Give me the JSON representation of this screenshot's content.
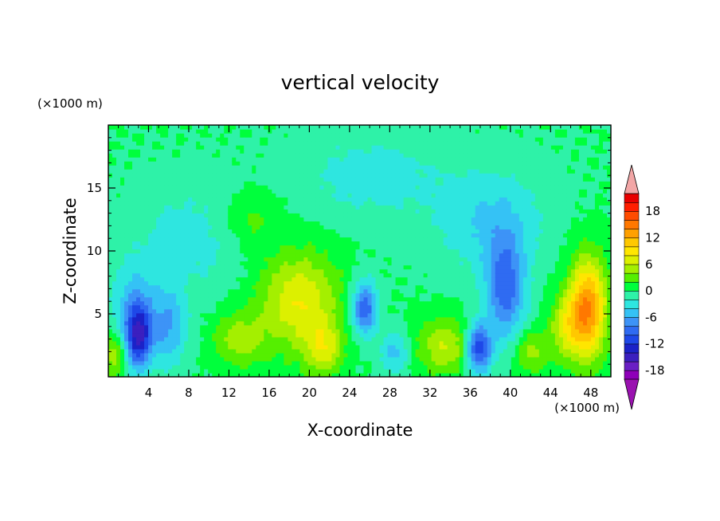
{
  "chart_data": {
    "type": "heatmap",
    "title": "vertical velocity",
    "xlabel": "X-coordinate",
    "ylabel": "Z-coordinate",
    "x_unit": "(×1000 m)",
    "y_unit": "(×1000 m)",
    "xlim": [
      0,
      50
    ],
    "ylim": [
      0,
      20
    ],
    "x_ticks": [
      "4",
      "8",
      "12",
      "16",
      "20",
      "24",
      "28",
      "32",
      "36",
      "40",
      "44",
      "48"
    ],
    "y_ticks": [
      "5",
      "10",
      "15"
    ],
    "colorbar": {
      "levels": [
        -20,
        -18,
        -16,
        -14,
        -12,
        -10,
        -8,
        -6,
        -4,
        -2,
        0,
        2,
        4,
        6,
        8,
        10,
        12,
        14,
        16,
        18,
        20
      ],
      "tick_labels": [
        "18",
        "12",
        "6",
        "0",
        "-6",
        "-12",
        "-18"
      ],
      "colors": [
        "#8e00b8",
        "#6a1fc4",
        "#3b1fbf",
        "#1b22c8",
        "#1e48e8",
        "#2f6bf2",
        "#3d93f7",
        "#35c2f5",
        "#2ee6e0",
        "#2ef2a8",
        "#00ff3c",
        "#55ef00",
        "#a4ef00",
        "#dcf000",
        "#ffe600",
        "#ffc800",
        "#ffa000",
        "#ff7800",
        "#ff4c00",
        "#ff1e00",
        "#e80000"
      ],
      "lower_arrow_color": "#9a12b0",
      "upper_arrow_color": "#f2a6a6"
    },
    "features": [
      {
        "x": 3.0,
        "z": 3.2,
        "value": -12,
        "sx": 0.9,
        "sz": 1.8
      },
      {
        "x": 2.5,
        "z": 5.5,
        "value": -5,
        "sx": 1.5,
        "sz": 2.5
      },
      {
        "x": 6.0,
        "z": 4.0,
        "value": -6,
        "sx": 1.3,
        "sz": 2.2
      },
      {
        "x": 0.6,
        "z": 1.8,
        "value": 6,
        "sx": 0.8,
        "sz": 1.2
      },
      {
        "x": 19.0,
        "z": 6.0,
        "value": 8,
        "sx": 2.8,
        "sz": 2.8
      },
      {
        "x": 21.5,
        "z": 2.2,
        "value": 6,
        "sx": 1.3,
        "sz": 1.5
      },
      {
        "x": 13.0,
        "z": 3.0,
        "value": 5,
        "sx": 1.8,
        "sz": 1.5
      },
      {
        "x": 25.5,
        "z": 5.5,
        "value": -10,
        "sx": 0.9,
        "sz": 1.5
      },
      {
        "x": 28.5,
        "z": 2.0,
        "value": -5,
        "sx": 1.0,
        "sz": 1.2
      },
      {
        "x": 33.5,
        "z": 2.5,
        "value": 6,
        "sx": 2.0,
        "sz": 1.6
      },
      {
        "x": 36.8,
        "z": 2.3,
        "value": -12,
        "sx": 0.9,
        "sz": 1.4
      },
      {
        "x": 39.5,
        "z": 7.0,
        "value": -9,
        "sx": 1.4,
        "sz": 3.0
      },
      {
        "x": 42.0,
        "z": 2.0,
        "value": 5,
        "sx": 1.2,
        "sz": 1.2
      },
      {
        "x": 47.7,
        "z": 5.5,
        "value": 14,
        "sx": 1.3,
        "sz": 2.8
      },
      {
        "x": 45.5,
        "z": 4.0,
        "value": 6,
        "sx": 1.2,
        "sz": 1.8
      },
      {
        "x": 38.0,
        "z": 12.5,
        "value": -4,
        "sx": 4.0,
        "sz": 3.0
      },
      {
        "x": 8.0,
        "z": 11.0,
        "value": -3,
        "sx": 4.0,
        "sz": 3.0
      },
      {
        "x": 26.0,
        "z": 16.0,
        "value": -3,
        "sx": 5.0,
        "sz": 2.5
      },
      {
        "x": 14.0,
        "z": 12.5,
        "value": 3,
        "sx": 2.0,
        "sz": 1.5
      }
    ]
  }
}
